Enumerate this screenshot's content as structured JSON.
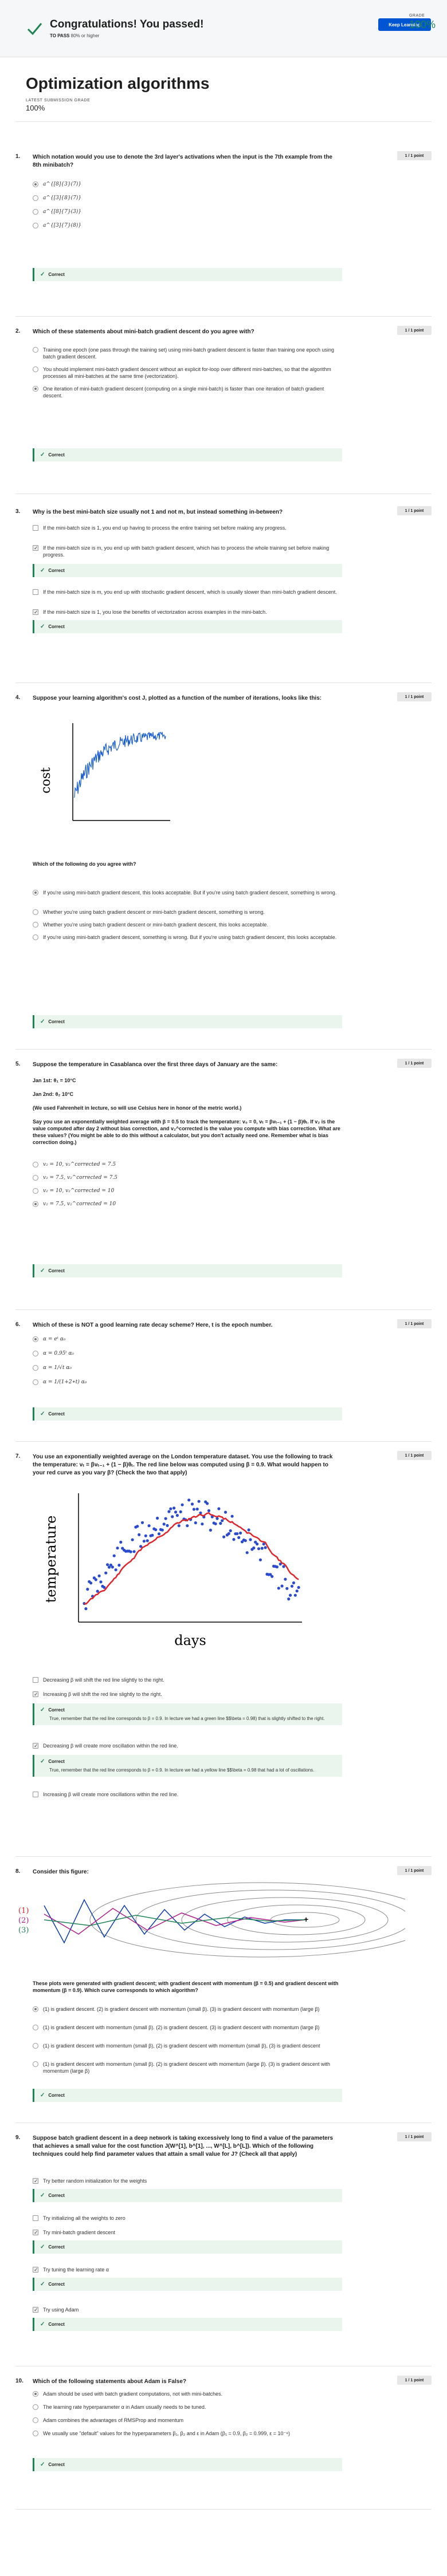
{
  "banner": {
    "title": "Congratulations! You passed!",
    "pass_label": "TO PASS",
    "pass_value": "80% or higher",
    "keep_learning": "Keep Learning",
    "grade_label": "GRADE",
    "grade_value": "100%"
  },
  "header": {
    "title": "Optimization algorithms",
    "latest_label": "LATEST SUBMISSION GRADE",
    "latest_value": "100%"
  },
  "points_label": "1 / 1 point",
  "correct_label": "Correct",
  "questions": [
    {
      "num": "1.",
      "text": "Which notation would you use to denote the 3rd layer's activations when the input is the 7th example from the 8th minibatch?",
      "options": [
        "a^{[8]{3}(7)}",
        "a^{[3]{8}(7)}",
        "a^{[8]{7}(3)}",
        "a^{[3]{7}(8)}"
      ]
    },
    {
      "num": "2.",
      "text": "Which of these statements about mini-batch gradient descent do you agree with?",
      "options": [
        "Training one epoch (one pass through the training set) using mini-batch gradient descent is faster than training one epoch using batch gradient descent.",
        "You should implement mini-batch gradient descent without an explicit for-loop over different mini-batches, so that the algorithm processes all mini-batches at the same time (vectorization).",
        "One iteration of mini-batch gradient descent (computing on a single mini-batch) is faster than one iteration of batch gradient descent."
      ]
    },
    {
      "num": "3.",
      "text": "Why is the best mini-batch size usually not 1 and not m, but instead something in-between?",
      "options": [
        "If the mini-batch size is m, you end up with stochastic gradient descent, which is usually slower than mini-batch gradient descent.",
        "If the mini-batch size is 1, you lose the benefits of vectorization across examples in the mini-batch.",
        "If the mini-batch size is m, you end up with batch gradient descent, which has to process the whole training set before making progress.",
        "If the mini-batch size is 1, you end up having to process the entire training set before making any progress."
      ]
    },
    {
      "num": "4.",
      "text": "Suppose your learning algorithm's cost J, plotted as a function of the number of iterations, looks like this:",
      "figure_label": "cost",
      "subtext": "Which of the following do you agree with?",
      "options": [
        "If you're using mini-batch gradient descent, this looks acceptable. But if you're using batch gradient descent, something is wrong.",
        "Whether you're using batch gradient descent or mini-batch gradient descent, something is wrong.",
        "Whether you're using batch gradient descent or mini-batch gradient descent, this looks acceptable.",
        "If you're using mini-batch gradient descent, something is wrong. But if you're using batch gradient descent, this looks acceptable."
      ]
    },
    {
      "num": "5.",
      "text": "Suppose the temperature in Casablanca over the first three days of January are the same:",
      "jan1": "Jan 1st: θ₁ = 10°C",
      "jan2": "Jan 2nd: θ₂ 10°C",
      "note": "(We used Fahrenheit in lecture, so will use Celsius here in honor of the metric world.)",
      "desc": "Say you use an exponentially weighted average with β = 0.5 to track the temperature: v₀ = 0, vₜ = βvₜ₋₁ + (1 − β)θₜ. If v₂ is the value computed after day 2 without bias correction, and v₂^corrected is the value you compute with bias correction. What are these values? (You might be able to do this without a calculator, but you don't actually need one. Remember what is bias correction doing.)",
      "options": [
        "v₂ = 10, v₂^corrected = 7.5",
        "v₂ = 7.5, v₂^corrected = 7.5",
        "v₂ = 10, v₂^corrected = 10",
        "v₂ = 7.5, v₂^corrected = 10"
      ]
    },
    {
      "num": "6.",
      "text": "Which of these is NOT a good learning rate decay scheme? Here, t is the epoch number.",
      "options": [
        "α = eᵗ α₀",
        "α = 0.95ᵗ α₀",
        "α = 1/√t α₀",
        "α = 1/(1+2∗t) α₀"
      ]
    },
    {
      "num": "7.",
      "text": "You use an exponentially weighted average on the London temperature dataset. You use the following to track the temperature: vₜ = βvₜ₋₁ + (1 − β)θₜ. The red line below was computed using β = 0.9. What would happen to your red curve as you vary β? (Check the two that apply)",
      "ylabel": "temperature",
      "xlabel": "days",
      "options": [
        "Decreasing β will shift the red line slightly to the right.",
        "Increasing β will shift the red line slightly to the right.",
        "Decreasing β will create more oscillation within the red line.",
        "Increasing β will create more oscillations within the red line."
      ],
      "explain1": "True, remember that the red line corresponds to β = 0.9. In lecture we had a green line $$\\beta = 0.98) that is slightly shifted to the right.",
      "explain2": "True, remember that the red line corresponds to β = 0.9. In lecture we had a yellow line $$\\beta = 0.98 that had a lot of oscillations."
    },
    {
      "num": "8.",
      "text": "Consider this figure:",
      "labels": [
        "(1)",
        "(2)",
        "(3)"
      ],
      "desc": "These plots were generated with gradient descent; with gradient descent with momentum (β = 0.5) and gradient descent with momentum (β = 0.9). Which curve corresponds to which algorithm?",
      "options": [
        "(1) is gradient descent. (2) is gradient descent with momentum (small β). (3) is gradient descent with momentum (large β)",
        "(1) is gradient descent with momentum (small β). (2) is gradient descent. (3) is gradient descent with momentum (large β)",
        "(1) is gradient descent with momentum (small β), (2) is gradient descent with momentum (small β), (3) is gradient descent",
        "(1) is gradient descent with momentum (small β). (2) is gradient descent with momentum (large β). (3) is gradient descent with momentum (large β)"
      ]
    },
    {
      "num": "9.",
      "text": "Suppose batch gradient descent in a deep network is taking excessively long to find a value of the parameters that achieves a small value for the cost function J(W^[1], b^[1], ..., W^[L], b^[L]). Which of the following techniques could help find parameter values that attain a small value for J? (Check all that apply)",
      "options": [
        "Try better random initialization for the weights",
        "Try initializing all the weights to zero",
        "Try mini-batch gradient descent",
        "Try tuning the learning rate α",
        "Try using Adam"
      ]
    },
    {
      "num": "10.",
      "text": "Which of the following statements about Adam is False?",
      "options": [
        "Adam should be used with batch gradient computations, not with mini-batches.",
        "The learning rate hyperparameter α in Adam usually needs to be tuned.",
        "Adam combines the advantages of RMSProp and momentum",
        "We usually use \"default\" values for the hyperparameters β₁, β₂ and ε in Adam (β₁ = 0.9, β₂ = 0.999, ε = 10⁻⁸)"
      ]
    }
  ],
  "icons": {
    "check": "checkmark-icon",
    "correct": "check-circle-icon"
  },
  "colors": {
    "accent": "#0056d2",
    "success": "#1f8354",
    "correct_bg": "#eaf5ee"
  }
}
